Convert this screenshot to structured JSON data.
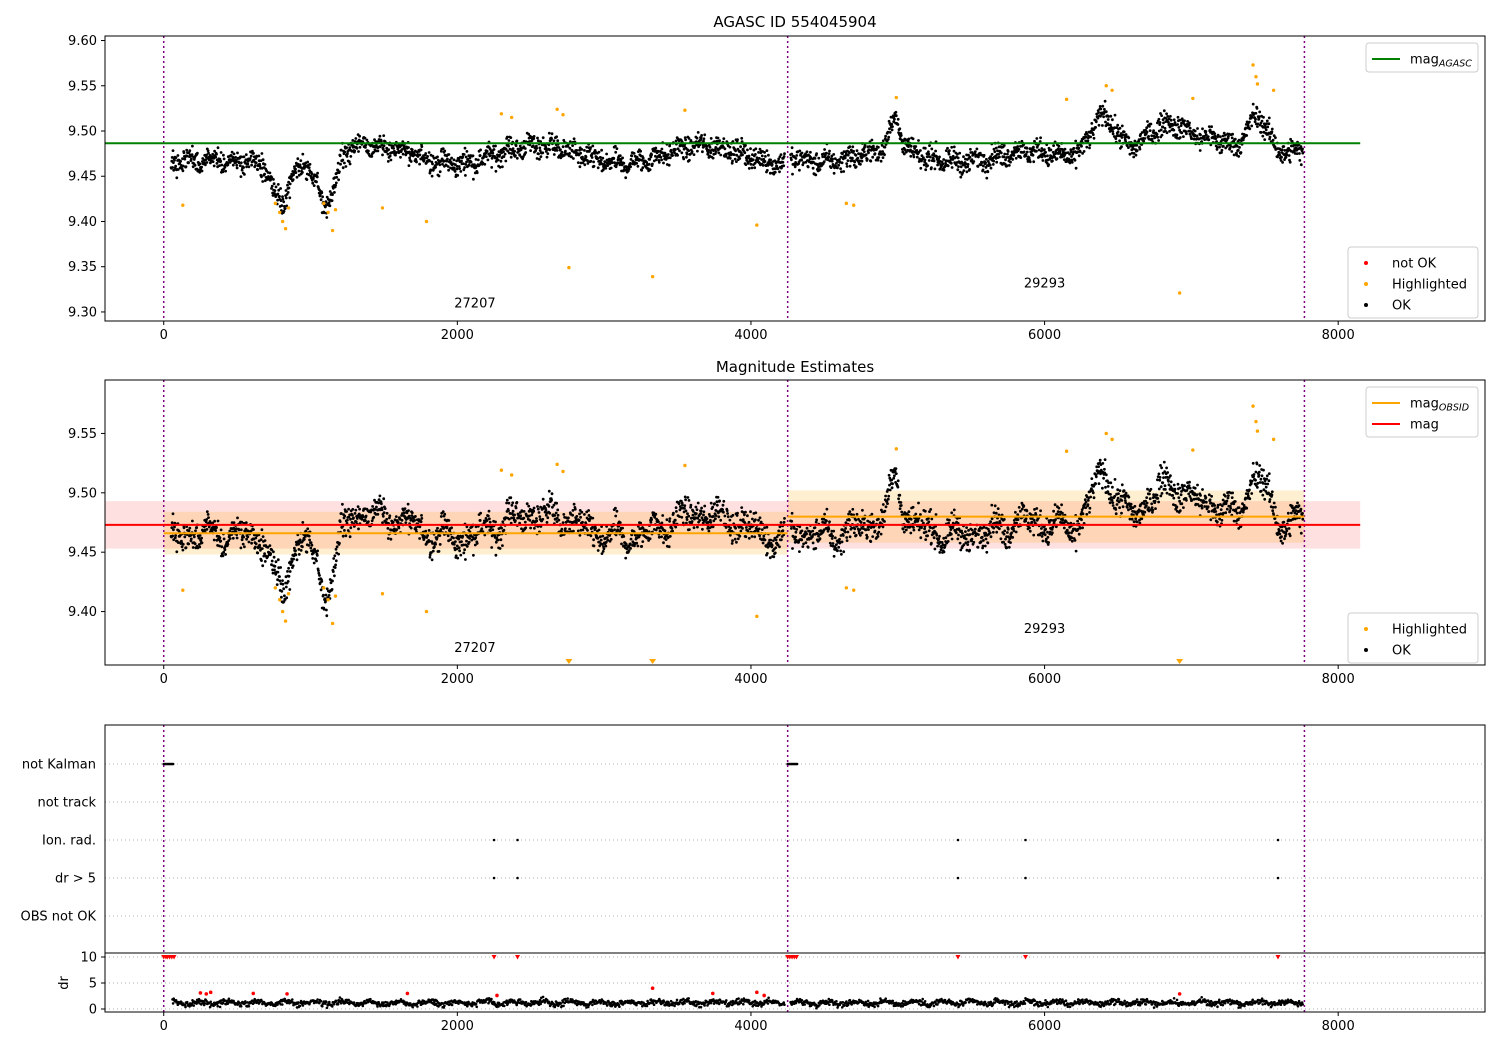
{
  "figure": {
    "background": "#ffffff"
  },
  "chart_data": [
    {
      "type": "scatter",
      "title": "AGASC ID 554045904",
      "xlim": [
        -400,
        9000
      ],
      "ylim": [
        9.29,
        9.605
      ],
      "xticks": [
        0,
        2000,
        4000,
        6000,
        8000
      ],
      "yticks": [
        9.3,
        9.35,
        9.4,
        9.45,
        9.5,
        9.55,
        9.6
      ],
      "ytick_labels": [
        "9.30",
        "9.35",
        "9.40",
        "9.45",
        "9.50",
        "9.55",
        "9.60"
      ],
      "obs_boundaries": [
        0,
        4250,
        7770
      ],
      "obs_labels": [
        {
          "text": "27207",
          "x": 2120,
          "y": 9.305
        },
        {
          "text": "29293",
          "x": 6000,
          "y": 9.327
        }
      ],
      "lines": [
        {
          "name": "mag",
          "sub": "AGASC",
          "value": 9.4865,
          "x_range": [
            -400,
            8150
          ],
          "color": "#008000"
        }
      ],
      "legends": [
        {
          "position": "top-right",
          "entries": [
            {
              "kind": "line",
              "text": "mag",
              "sub": "AGASC",
              "color": "#008000"
            }
          ]
        },
        {
          "position": "bottom-right",
          "entries": [
            {
              "kind": "marker",
              "text": "not OK",
              "color": "#ff0000"
            },
            {
              "kind": "marker",
              "text": "Highlighted",
              "color": "#ffa500"
            },
            {
              "kind": "marker",
              "text": "OK",
              "color": "#000000"
            }
          ]
        }
      ],
      "highlighted_points": [
        {
          "x": 130,
          "y": 9.418
        },
        {
          "x": 760,
          "y": 9.42
        },
        {
          "x": 790,
          "y": 9.41
        },
        {
          "x": 810,
          "y": 9.4
        },
        {
          "x": 830,
          "y": 9.392
        },
        {
          "x": 850,
          "y": 9.415
        },
        {
          "x": 1090,
          "y": 9.42
        },
        {
          "x": 1120,
          "y": 9.41
        },
        {
          "x": 1150,
          "y": 9.39
        },
        {
          "x": 1170,
          "y": 9.413
        },
        {
          "x": 1490,
          "y": 9.415
        },
        {
          "x": 1790,
          "y": 9.4
        },
        {
          "x": 2300,
          "y": 9.519
        },
        {
          "x": 2370,
          "y": 9.515
        },
        {
          "x": 2680,
          "y": 9.524
        },
        {
          "x": 2720,
          "y": 9.518
        },
        {
          "x": 2760,
          "y": 9.349
        },
        {
          "x": 3330,
          "y": 9.339
        },
        {
          "x": 3550,
          "y": 9.523
        },
        {
          "x": 4040,
          "y": 9.396
        },
        {
          "x": 4650,
          "y": 9.42
        },
        {
          "x": 4700,
          "y": 9.418
        },
        {
          "x": 4990,
          "y": 9.537
        },
        {
          "x": 6150,
          "y": 9.535
        },
        {
          "x": 6420,
          "y": 9.55
        },
        {
          "x": 6460,
          "y": 9.545
        },
        {
          "x": 6920,
          "y": 9.321
        },
        {
          "x": 7010,
          "y": 9.536
        },
        {
          "x": 7420,
          "y": 9.573
        },
        {
          "x": 7440,
          "y": 9.56
        },
        {
          "x": 7450,
          "y": 9.552
        },
        {
          "x": 7560,
          "y": 9.545
        }
      ]
    },
    {
      "type": "scatter",
      "title": "Magnitude Estimates",
      "xlim": [
        -400,
        9000
      ],
      "ylim": [
        9.355,
        9.595
      ],
      "xticks": [
        0,
        2000,
        4000,
        6000,
        8000
      ],
      "yticks": [
        9.4,
        9.45,
        9.5,
        9.55
      ],
      "ytick_labels": [
        "9.40",
        "9.45",
        "9.50",
        "9.55"
      ],
      "obs_boundaries": [
        0,
        4250,
        7770
      ],
      "obs_labels": [
        {
          "text": "27207",
          "x": 2120,
          "y": 9.366
        },
        {
          "text": "29293",
          "x": 6000,
          "y": 9.382
        }
      ],
      "lines": [
        {
          "name": "mag",
          "sub": "",
          "value": 9.473,
          "x_range": [
            -400,
            8150
          ],
          "color": "#ff0000",
          "band": [
            9.453,
            9.493
          ],
          "band_color": "#ff0000",
          "band_opacity": 0.12
        },
        {
          "name": "mag",
          "sub": "OBSID",
          "value": 9.466,
          "x_range": [
            0,
            4250
          ],
          "color": "#ffa500",
          "band": [
            9.448,
            9.484
          ],
          "band_color": "#ffa500",
          "band_opacity": 0.18
        },
        {
          "name": "mag",
          "sub": "OBSID",
          "value": 9.48,
          "x_range": [
            4250,
            7770
          ],
          "color": "#ffa500",
          "band": [
            9.458,
            9.502
          ],
          "band_color": "#ffa500",
          "band_opacity": 0.18
        }
      ],
      "legends": [
        {
          "position": "top-right",
          "entries": [
            {
              "kind": "line",
              "text": "mag",
              "sub": "OBSID",
              "color": "#ffa500"
            },
            {
              "kind": "line",
              "text": "mag",
              "sub": "",
              "color": "#ff0000"
            }
          ]
        },
        {
          "position": "bottom-right",
          "entries": [
            {
              "kind": "marker",
              "text": "Highlighted",
              "color": "#ffa500"
            },
            {
              "kind": "marker",
              "text": "OK",
              "color": "#000000"
            }
          ]
        }
      ],
      "highlighted_points": [
        {
          "x": 130,
          "y": 9.418
        },
        {
          "x": 760,
          "y": 9.42
        },
        {
          "x": 790,
          "y": 9.41
        },
        {
          "x": 810,
          "y": 9.4
        },
        {
          "x": 830,
          "y": 9.392
        },
        {
          "x": 850,
          "y": 9.415
        },
        {
          "x": 1090,
          "y": 9.42
        },
        {
          "x": 1120,
          "y": 9.41
        },
        {
          "x": 1150,
          "y": 9.39
        },
        {
          "x": 1170,
          "y": 9.413
        },
        {
          "x": 1490,
          "y": 9.415
        },
        {
          "x": 1790,
          "y": 9.4
        },
        {
          "x": 2300,
          "y": 9.519
        },
        {
          "x": 2370,
          "y": 9.515
        },
        {
          "x": 2680,
          "y": 9.524
        },
        {
          "x": 2720,
          "y": 9.518
        },
        {
          "x": 3550,
          "y": 9.523
        },
        {
          "x": 4040,
          "y": 9.396
        },
        {
          "x": 4650,
          "y": 9.42
        },
        {
          "x": 4700,
          "y": 9.418
        },
        {
          "x": 4990,
          "y": 9.537
        },
        {
          "x": 6150,
          "y": 9.535
        },
        {
          "x": 6420,
          "y": 9.55
        },
        {
          "x": 6460,
          "y": 9.545
        },
        {
          "x": 7010,
          "y": 9.536
        },
        {
          "x": 7420,
          "y": 9.573
        },
        {
          "x": 7440,
          "y": 9.56
        },
        {
          "x": 7450,
          "y": 9.552
        },
        {
          "x": 7560,
          "y": 9.545
        }
      ],
      "out_of_range_markers": [
        2760,
        3330,
        6920
      ]
    },
    {
      "type": "scatter",
      "title": "",
      "xlim": [
        -400,
        9000
      ],
      "obs_boundaries": [
        0,
        4250,
        7770
      ],
      "flag_rows": [
        "not Kalman",
        "not track",
        "Ion. rad.",
        "dr > 5",
        "OBS not OK"
      ],
      "flags": {
        "not Kalman": {
          "ranges": [
            [
              0,
              70
            ],
            [
              4250,
              4320
            ]
          ]
        },
        "not track": {
          "ranges": []
        },
        "Ion. rad.": {
          "points": [
            2250,
            2410,
            5410,
            5870,
            7590
          ]
        },
        "dr > 5": {
          "points": [
            2250,
            2410,
            5410,
            5870,
            7590
          ]
        },
        "OBS not OK": {
          "points": []
        }
      },
      "dr": {
        "ylabel": "dr",
        "ylim": [
          -0.5,
          10.5
        ],
        "yticks": [
          0,
          5,
          10
        ],
        "clip_value": 10,
        "clipped_points": [
          0,
          15,
          25,
          40,
          55,
          70,
          4250,
          4265,
          4280,
          4295,
          4310,
          2250,
          2410,
          5410,
          5870,
          7590
        ],
        "red_points": [
          {
            "x": 250,
            "y": 3.1
          },
          {
            "x": 290,
            "y": 2.9
          },
          {
            "x": 320,
            "y": 3.2
          },
          {
            "x": 610,
            "y": 3.0
          },
          {
            "x": 840,
            "y": 2.9
          },
          {
            "x": 1660,
            "y": 3.0
          },
          {
            "x": 2270,
            "y": 2.6
          },
          {
            "x": 3330,
            "y": 4.0
          },
          {
            "x": 3740,
            "y": 3.0
          },
          {
            "x": 4040,
            "y": 3.2
          },
          {
            "x": 4090,
            "y": 2.6
          },
          {
            "x": 6920,
            "y": 2.9
          }
        ]
      }
    }
  ]
}
